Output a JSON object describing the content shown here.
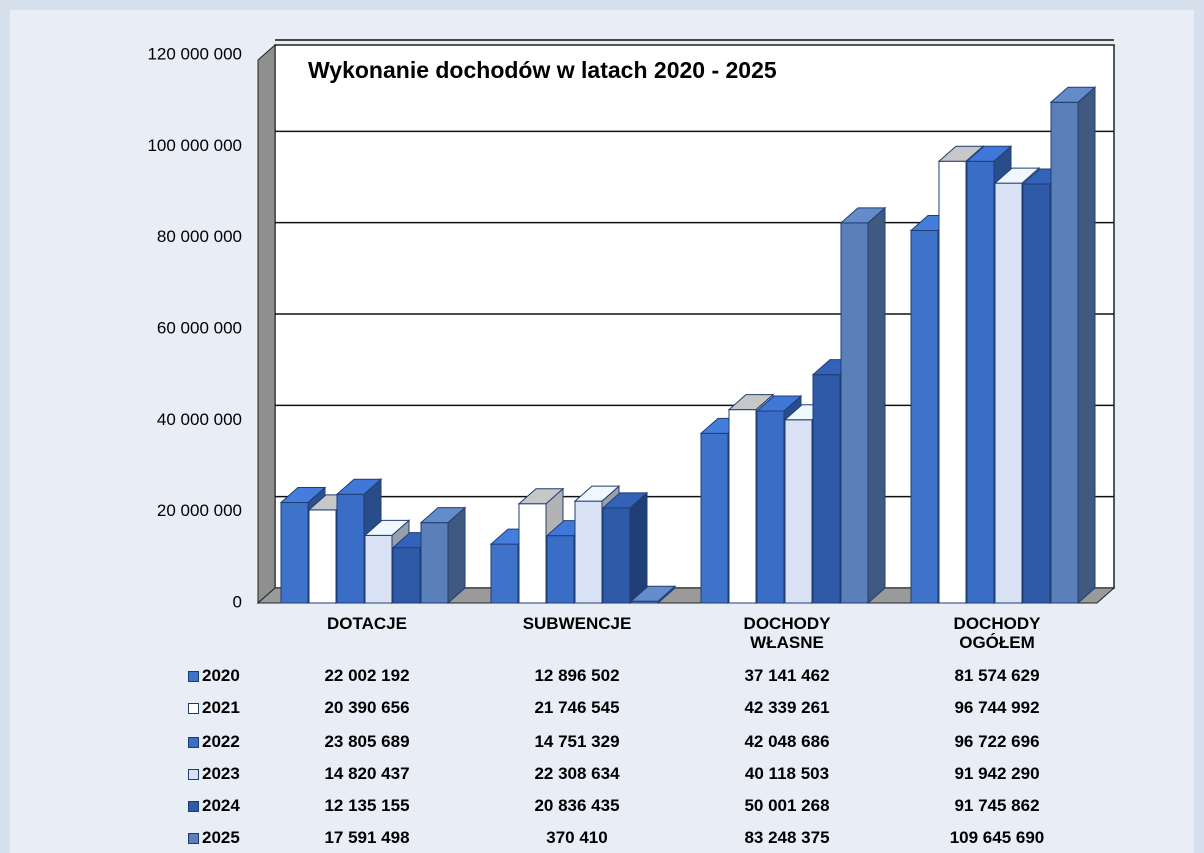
{
  "chart_data": {
    "type": "bar3d",
    "title": "Wykonanie dochodów w latach 2020 - 2025",
    "categories": [
      "DOTACJE",
      "SUBWENCJE",
      "DOCHODY WŁASNE",
      "DOCHODY OGÓŁEM"
    ],
    "series": [
      {
        "name": "2020",
        "color": "#3f72c9",
        "values": [
          22002192,
          12896502,
          37141462,
          81574629
        ],
        "value_labels": [
          "22 002 192",
          "12 896 502",
          "37 141 462",
          "81 574 629"
        ]
      },
      {
        "name": "2021",
        "color": "#ffffff",
        "values": [
          20390656,
          21746545,
          42339261,
          96744992
        ],
        "value_labels": [
          "20 390 656",
          "21 746 545",
          "42 339 261",
          "96 744 992"
        ]
      },
      {
        "name": "2022",
        "color": "#3a6dc6",
        "values": [
          23805689,
          14751329,
          42048686,
          96722696
        ],
        "value_labels": [
          "23 805 689",
          "14 751 329",
          "42 048 686",
          "96 722 696"
        ]
      },
      {
        "name": "2023",
        "color": "#d9e1f5",
        "values": [
          14820437,
          22308634,
          40118503,
          91942290
        ],
        "value_labels": [
          "14 820 437",
          "22 308 634",
          "40 118 503",
          "91 942 290"
        ]
      },
      {
        "name": "2024",
        "color": "#2e5aa8",
        "values": [
          12135155,
          20836435,
          50001268,
          91745862
        ],
        "value_labels": [
          "12 135 155",
          "20 836 435",
          "50 001 268",
          "91 745 862"
        ]
      },
      {
        "name": "2025",
        "color": "#5b7fb8",
        "values": [
          17591498,
          370410,
          83248375,
          109645690
        ],
        "value_labels": [
          "17 591 498",
          "370 410",
          "83 248 375",
          "109 645 690"
        ]
      }
    ],
    "ylim": [
      0,
      120000000
    ],
    "yticks": [
      {
        "value": 0,
        "label": "0"
      },
      {
        "value": 20000000,
        "label": "20 000 000"
      },
      {
        "value": 40000000,
        "label": "40 000 000"
      },
      {
        "value": 60000000,
        "label": "60 000 000"
      },
      {
        "value": 80000000,
        "label": "80 000 000"
      },
      {
        "value": 100000000,
        "label": "100 000 000"
      },
      {
        "value": 120000000,
        "label": "120 000 000"
      }
    ],
    "grid": true
  }
}
